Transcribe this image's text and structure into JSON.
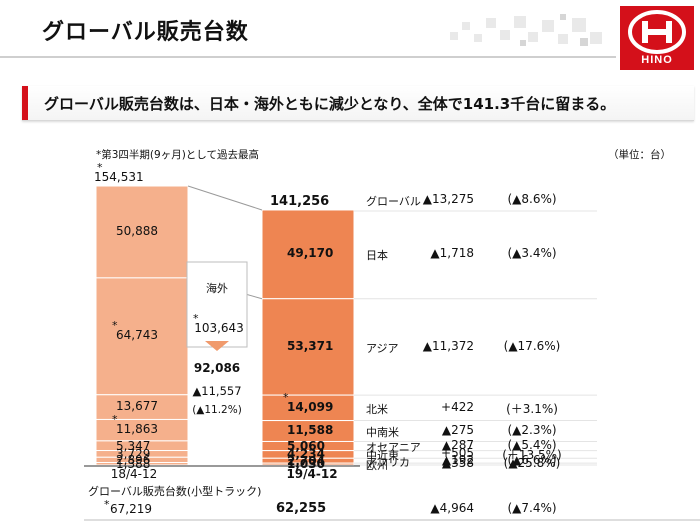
{
  "page": {
    "title": "グローバル販売台数",
    "banner": "グローバル販売台数は、日本・海外ともに減少となり、全体で141.3千台に留まる。",
    "note": "*第3四半期(9ヶ月)として過去最高",
    "unit": "（単位：台）",
    "logo_text": "HINO",
    "brand_color": "#d4101a"
  },
  "chart_data": {
    "type": "bar",
    "stacked": true,
    "categories": [
      "18/4-12",
      "19/4-12"
    ],
    "segments": [
      {
        "name": "日本",
        "values": [
          50888,
          49170
        ],
        "labels": [
          "50,888",
          "49,170"
        ],
        "marked": [
          false,
          false
        ]
      },
      {
        "name": "アジア",
        "values": [
          64743,
          53371
        ],
        "labels": [
          "64,743",
          "53,371"
        ],
        "marked": [
          true,
          false
        ]
      },
      {
        "name": "北米",
        "values": [
          13677,
          14099
        ],
        "labels": [
          "13,677",
          "14,099"
        ],
        "marked": [
          false,
          true
        ]
      },
      {
        "name": "中南米",
        "values": [
          11863,
          11588
        ],
        "labels": [
          "11,863",
          "11,588"
        ],
        "marked": [
          true,
          false
        ]
      },
      {
        "name": "オセアニア",
        "values": [
          5347,
          5060
        ],
        "labels": [
          "5,347",
          "5,060"
        ],
        "marked": [
          false,
          false
        ]
      },
      {
        "name": "中近東",
        "values": [
          3729,
          4234
        ],
        "labels": [
          "3,729",
          "4,234"
        ],
        "marked": [
          false,
          false
        ]
      },
      {
        "name": "アフリカ",
        "values": [
          2896,
          2704
        ],
        "labels": [
          "2,896",
          "2,704"
        ],
        "marked": [
          false,
          false
        ]
      },
      {
        "name": "欧州",
        "values": [
          1388,
          1030
        ],
        "labels": [
          "1,388",
          "1,030"
        ],
        "marked": [
          false,
          false
        ]
      }
    ],
    "totals": {
      "values": [
        154531,
        141256
      ],
      "labels": [
        "154,531",
        "141,256"
      ],
      "marked": [
        true,
        false
      ]
    },
    "overseas_box": {
      "label": "海外",
      "prev": "103,643",
      "prev_marked": true,
      "current": "92,086",
      "change": "▲11,557",
      "change_pct": "(▲11.2%)"
    },
    "comparison": [
      {
        "name": "グローバル",
        "change": "▲13,275",
        "pct": "(▲8.6%)"
      },
      {
        "name": "日本",
        "change": "▲1,718",
        "pct": "(▲3.4%)"
      },
      {
        "name": "アジア",
        "change": "▲11,372",
        "pct": "(▲17.6%)"
      },
      {
        "name": "北米",
        "change": "+422",
        "pct": "(＋3.1%)"
      },
      {
        "name": "中南米",
        "change": "▲275",
        "pct": "(▲2.3%)"
      },
      {
        "name": "オセアニア",
        "change": "▲287",
        "pct": "(▲5.4%)"
      },
      {
        "name": "中近東",
        "change": "+505",
        "pct": "(＋13.5%)"
      },
      {
        "name": "アフリカ",
        "change": "▲192",
        "pct": "(▲6.6%)"
      },
      {
        "name": "欧州",
        "change": "▲358",
        "pct": "(▲25.8%)"
      }
    ],
    "light_truck": {
      "label": "グローバル販売台数(小型トラック)",
      "prev": "67,219",
      "prev_marked": true,
      "current": "62,255",
      "change": "▲4,964",
      "pct": "(▲7.4%)"
    },
    "colors": {
      "bar_2018": "#f5b08c",
      "bar_2019": "#ee8552",
      "bar_border": "#ffffff",
      "row_line": "#e4e4e4",
      "connector": "#9a9a9a",
      "box_arrow": "#f09a6c"
    }
  }
}
